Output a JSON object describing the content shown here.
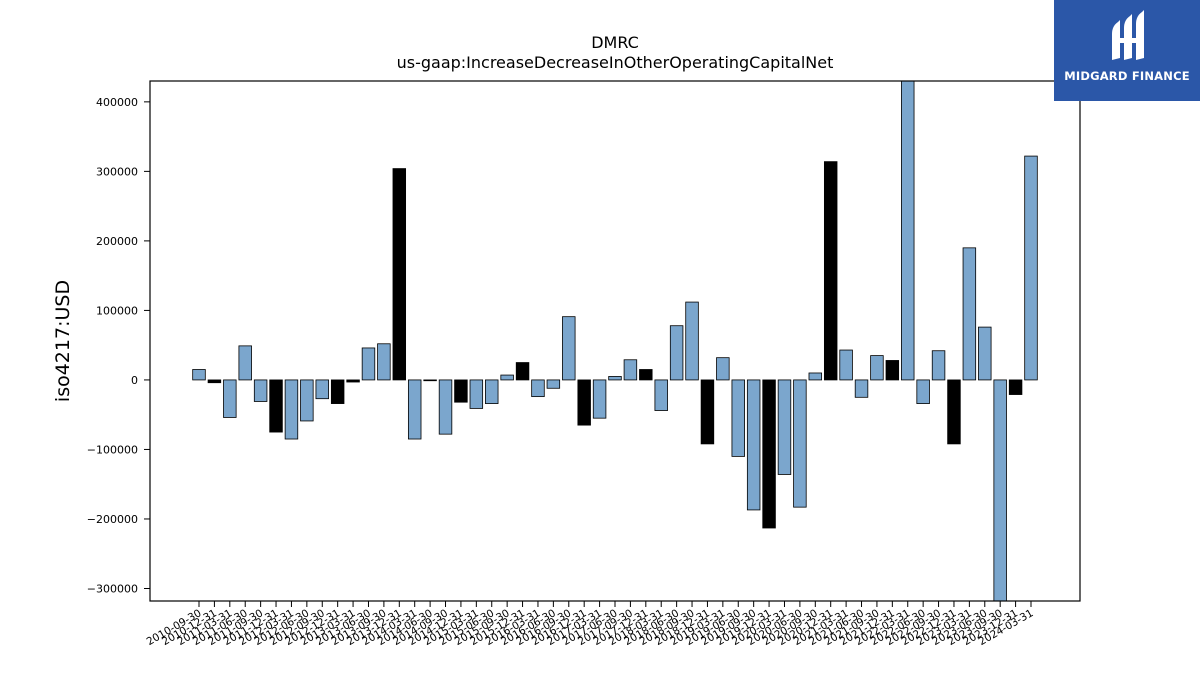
{
  "brand": {
    "name": "MIDGARD FINANCE",
    "icon": "midgard-logo-icon",
    "color": "#2b57a8"
  },
  "chart_data": {
    "type": "bar",
    "title": "DMRC",
    "subtitle": "us-gaap:IncreaseDecreaseInOtherOperatingCapitalNet",
    "xlabel": "",
    "ylabel": "iso4217:USD",
    "ylim": [
      -318000,
      430000
    ],
    "yticks": [
      -300000,
      -200000,
      -100000,
      0,
      100000,
      200000,
      300000,
      400000
    ],
    "ytick_labels": [
      "−300000",
      "−200000",
      "−100000",
      "0",
      "100000",
      "200000",
      "300000",
      "400000"
    ],
    "colors": {
      "quarterly": "#7ba6cd",
      "annual": "#000000"
    },
    "grid": false,
    "legend": "none",
    "bars": [
      {
        "label": "2010-09-30",
        "value": 15000,
        "annual": false
      },
      {
        "label": "2010-12-31",
        "value": -4000,
        "annual": true
      },
      {
        "label": "2011-03-31",
        "value": -54000,
        "annual": false
      },
      {
        "label": "2011-06-30",
        "value": 49000,
        "annual": false
      },
      {
        "label": "2011-09-30",
        "value": -31000,
        "annual": false
      },
      {
        "label": "2011-12-31",
        "value": -75000,
        "annual": true
      },
      {
        "label": "2012-03-31",
        "value": -85000,
        "annual": false
      },
      {
        "label": "2012-06-30",
        "value": -59000,
        "annual": false
      },
      {
        "label": "2012-09-30",
        "value": -27000,
        "annual": false
      },
      {
        "label": "2012-12-31",
        "value": -34000,
        "annual": true
      },
      {
        "label": "2013-03-31",
        "value": -3000,
        "annual": true
      },
      {
        "label": "2013-06-30",
        "value": 46000,
        "annual": false
      },
      {
        "label": "2013-09-30",
        "value": 52000,
        "annual": false
      },
      {
        "label": "2013-12-31",
        "value": 304000,
        "annual": true
      },
      {
        "label": "2014-03-31",
        "value": -85000,
        "annual": false
      },
      {
        "label": "2014-06-30",
        "value": -1000,
        "annual": false
      },
      {
        "label": "2014-09-30",
        "value": -78000,
        "annual": false
      },
      {
        "label": "2014-12-31",
        "value": -32000,
        "annual": true
      },
      {
        "label": "2015-03-31",
        "value": -41000,
        "annual": false
      },
      {
        "label": "2015-06-30",
        "value": -34000,
        "annual": false
      },
      {
        "label": "2015-09-30",
        "value": 7000,
        "annual": false
      },
      {
        "label": "2015-12-31",
        "value": 25000,
        "annual": true
      },
      {
        "label": "2016-03-31",
        "value": -24000,
        "annual": false
      },
      {
        "label": "2016-06-30",
        "value": -12000,
        "annual": false
      },
      {
        "label": "2016-09-30",
        "value": 91000,
        "annual": false
      },
      {
        "label": "2016-12-31",
        "value": -65000,
        "annual": true
      },
      {
        "label": "2017-03-31",
        "value": -55000,
        "annual": false
      },
      {
        "label": "2017-06-30",
        "value": 5000,
        "annual": false
      },
      {
        "label": "2017-09-30",
        "value": 29000,
        "annual": false
      },
      {
        "label": "2017-12-31",
        "value": 15000,
        "annual": true
      },
      {
        "label": "2018-03-31",
        "value": -44000,
        "annual": false
      },
      {
        "label": "2018-06-30",
        "value": 78000,
        "annual": false
      },
      {
        "label": "2018-09-30",
        "value": 112000,
        "annual": false
      },
      {
        "label": "2018-12-31",
        "value": -92000,
        "annual": true
      },
      {
        "label": "2019-03-31",
        "value": 32000,
        "annual": false
      },
      {
        "label": "2019-06-30",
        "value": -110000,
        "annual": false
      },
      {
        "label": "2019-09-30",
        "value": -187000,
        "annual": false
      },
      {
        "label": "2019-12-31",
        "value": -213000,
        "annual": true
      },
      {
        "label": "2020-03-31",
        "value": -136000,
        "annual": false
      },
      {
        "label": "2020-06-30",
        "value": -183000,
        "annual": false
      },
      {
        "label": "2020-09-30",
        "value": 10000,
        "annual": false
      },
      {
        "label": "2020-12-31",
        "value": 314000,
        "annual": true
      },
      {
        "label": "2021-03-31",
        "value": 43000,
        "annual": false
      },
      {
        "label": "2021-06-30",
        "value": -25000,
        "annual": false
      },
      {
        "label": "2021-09-30",
        "value": 35000,
        "annual": false
      },
      {
        "label": "2021-12-31",
        "value": 28000,
        "annual": true
      },
      {
        "label": "2022-03-31",
        "value": 430000,
        "annual": false
      },
      {
        "label": "2022-06-30",
        "value": -34000,
        "annual": false
      },
      {
        "label": "2022-09-30",
        "value": 42000,
        "annual": false
      },
      {
        "label": "2022-12-31",
        "value": -92000,
        "annual": true
      },
      {
        "label": "2023-03-31",
        "value": 190000,
        "annual": false
      },
      {
        "label": "2023-06-30",
        "value": 76000,
        "annual": false
      },
      {
        "label": "2023-09-30",
        "value": -318000,
        "annual": false
      },
      {
        "label": "2023-12-31",
        "value": -21000,
        "annual": true
      },
      {
        "label": "2024-03-31",
        "value": 322000,
        "annual": false
      }
    ]
  }
}
